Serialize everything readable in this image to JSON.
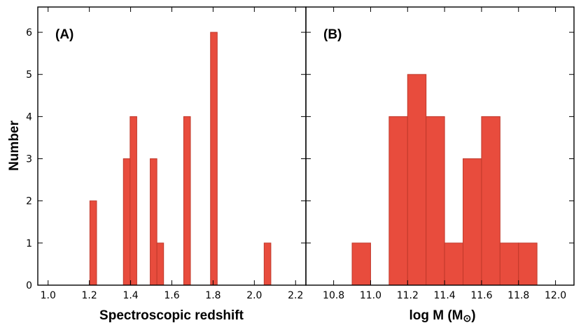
{
  "chart_data": [
    {
      "type": "bar",
      "panel_label": "(A)",
      "title": "",
      "xlabel": "Spectroscopic redshift",
      "ylabel": "Number",
      "xlim": [
        0.95,
        2.25
      ],
      "ylim": [
        0,
        6.6
      ],
      "xticks": [
        1.0,
        1.2,
        1.4,
        1.6,
        1.8,
        2.0,
        2.2
      ],
      "xtick_labels": [
        "1.0",
        "1.2",
        "1.4",
        "1.6",
        "1.8",
        "2.0",
        "2.2"
      ],
      "yticks": [
        0,
        1,
        2,
        3,
        4,
        5,
        6
      ],
      "ytick_labels": [
        "0",
        "1",
        "2",
        "3",
        "4",
        "5",
        "6"
      ],
      "bin_width": 0.0325,
      "bins": [
        {
          "start": 1.2025,
          "value": 2
        },
        {
          "start": 1.365,
          "value": 3
        },
        {
          "start": 1.3975,
          "value": 4
        },
        {
          "start": 1.495,
          "value": 3
        },
        {
          "start": 1.5275,
          "value": 1
        },
        {
          "start": 1.6575,
          "value": 4
        },
        {
          "start": 1.7875,
          "value": 6
        },
        {
          "start": 2.0475,
          "value": 1
        }
      ]
    },
    {
      "type": "bar",
      "panel_label": "(B)",
      "title": "",
      "xlabel": "log M (M",
      "xlabel_symbol": "⊙",
      "xlabel_end": ")",
      "ylabel": "",
      "xlim": [
        10.65,
        12.1
      ],
      "ylim": [
        0,
        6.6
      ],
      "xticks": [
        10.8,
        11.0,
        11.2,
        11.4,
        11.6,
        11.8,
        12.0
      ],
      "xtick_labels": [
        "10.8",
        "11.0",
        "11.2",
        "11.4",
        "11.6",
        "11.8",
        "12.0"
      ],
      "yticks": [
        0,
        1,
        2,
        3,
        4,
        5,
        6
      ],
      "bin_width": 0.1,
      "bins": [
        {
          "start": 10.9,
          "value": 1
        },
        {
          "start": 11.1,
          "value": 4
        },
        {
          "start": 11.2,
          "value": 5
        },
        {
          "start": 11.3,
          "value": 4
        },
        {
          "start": 11.4,
          "value": 1
        },
        {
          "start": 11.5,
          "value": 3
        },
        {
          "start": 11.6,
          "value": 4
        },
        {
          "start": 11.7,
          "value": 1
        },
        {
          "start": 11.8,
          "value": 1
        }
      ]
    }
  ]
}
